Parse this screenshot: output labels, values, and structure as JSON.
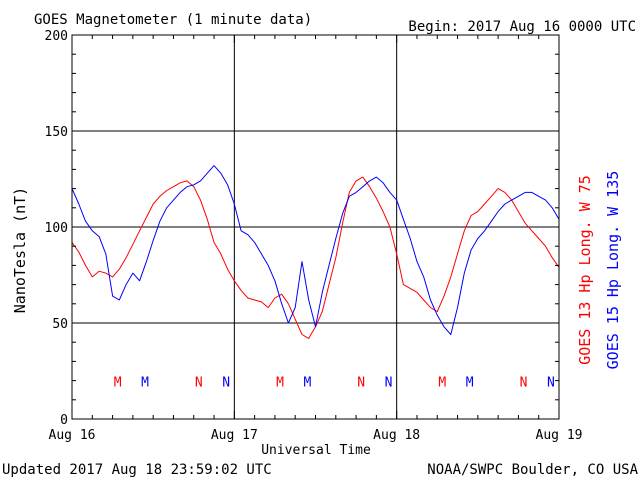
{
  "header": {
    "title": "GOES Magnetometer (1 minute data)",
    "begin": "Begin:  2017 Aug 16 0000 UTC"
  },
  "footer": {
    "updated": "Updated 2017 Aug 18 23:59:02 UTC",
    "credit": "NOAA/SWPC Boulder, CO USA"
  },
  "colors": {
    "goes13": "#ff0000",
    "goes15": "#0000ff",
    "axis": "#000000"
  },
  "chart_data": {
    "type": "line",
    "xlabel": "Universal Time",
    "ylabel": "NanoTesla (nT)",
    "xlim": [
      0,
      72
    ],
    "ylim": [
      0,
      200
    ],
    "x_unit": "hours since 2017 Aug 16 0000 UTC",
    "x_ticks": [
      {
        "x": 0,
        "label": "Aug 16"
      },
      {
        "x": 24,
        "label": "Aug 17"
      },
      {
        "x": 48,
        "label": "Aug 18"
      },
      {
        "x": 72,
        "label": "Aug 19"
      }
    ],
    "y_ticks": [
      0,
      50,
      100,
      150,
      200
    ],
    "grid": true,
    "series": [
      {
        "name": "GOES 13 Hp  Long. W 75",
        "color": "#ff0000",
        "x": [
          0,
          1,
          2,
          3,
          4,
          5,
          6,
          7,
          8,
          9,
          10,
          11,
          12,
          13,
          14,
          15,
          16,
          17,
          18,
          19,
          20,
          21,
          22,
          23,
          24,
          25,
          26,
          27,
          28,
          29,
          30,
          31,
          32,
          33,
          34,
          35,
          36,
          37,
          38,
          39,
          40,
          41,
          42,
          43,
          44,
          45,
          46,
          47,
          48,
          49,
          50,
          51,
          52,
          53,
          54,
          55,
          56,
          57,
          58,
          59,
          60,
          61,
          62,
          63,
          64,
          65,
          66,
          67,
          68,
          69,
          70,
          71,
          72
        ],
        "values": [
          92,
          87,
          80,
          74,
          77,
          76,
          74,
          78,
          84,
          91,
          98,
          105,
          112,
          116,
          119,
          121,
          123,
          124,
          121,
          114,
          104,
          92,
          86,
          78,
          72,
          67,
          63,
          62,
          61,
          58,
          63,
          65,
          60,
          52,
          44,
          42,
          48,
          56,
          70,
          84,
          102,
          118,
          124,
          126,
          121,
          115,
          108,
          100,
          86,
          70,
          68,
          66,
          62,
          58,
          56,
          64,
          74,
          86,
          98,
          106,
          108,
          112,
          116,
          120,
          118,
          114,
          108,
          102,
          98,
          94,
          90,
          84,
          79
        ]
      },
      {
        "name": "GOES 15 Hp  Long. W 135",
        "color": "#0000ff",
        "x": [
          0,
          1,
          2,
          3,
          4,
          5,
          6,
          7,
          8,
          9,
          10,
          11,
          12,
          13,
          14,
          15,
          16,
          17,
          18,
          19,
          20,
          21,
          22,
          23,
          24,
          25,
          26,
          27,
          28,
          29,
          30,
          31,
          32,
          33,
          34,
          35,
          36,
          37,
          38,
          39,
          40,
          41,
          42,
          43,
          44,
          45,
          46,
          47,
          48,
          49,
          50,
          51,
          52,
          53,
          54,
          55,
          56,
          57,
          58,
          59,
          60,
          61,
          62,
          63,
          64,
          65,
          66,
          67,
          68,
          69,
          70,
          71,
          72
        ],
        "values": [
          120,
          112,
          103,
          98,
          95,
          86,
          64,
          62,
          70,
          76,
          72,
          82,
          93,
          103,
          110,
          114,
          118,
          121,
          122,
          124,
          128,
          132,
          128,
          122,
          112,
          98,
          96,
          92,
          86,
          80,
          72,
          60,
          50,
          58,
          82,
          62,
          48,
          66,
          80,
          94,
          107,
          116,
          118,
          121,
          124,
          126,
          123,
          118,
          114,
          104,
          94,
          82,
          74,
          62,
          54,
          48,
          44,
          58,
          76,
          88,
          94,
          98,
          103,
          108,
          112,
          114,
          116,
          118,
          118,
          116,
          114,
          110,
          104
        ]
      }
    ],
    "annotations": [
      {
        "text": "M",
        "x": 6.75,
        "color": "#ff0000"
      },
      {
        "text": "M",
        "x": 10.8,
        "color": "#0000ff"
      },
      {
        "text": "N",
        "x": 18.75,
        "color": "#ff0000"
      },
      {
        "text": "N",
        "x": 22.8,
        "color": "#0000ff"
      },
      {
        "text": "M",
        "x": 30.75,
        "color": "#ff0000"
      },
      {
        "text": "M",
        "x": 34.8,
        "color": "#0000ff"
      },
      {
        "text": "N",
        "x": 42.75,
        "color": "#ff0000"
      },
      {
        "text": "N",
        "x": 46.8,
        "color": "#0000ff"
      },
      {
        "text": "M",
        "x": 54.75,
        "color": "#ff0000"
      },
      {
        "text": "M",
        "x": 58.8,
        "color": "#0000ff"
      },
      {
        "text": "N",
        "x": 66.75,
        "color": "#ff0000"
      },
      {
        "text": "N",
        "x": 70.8,
        "color": "#0000ff"
      }
    ]
  }
}
